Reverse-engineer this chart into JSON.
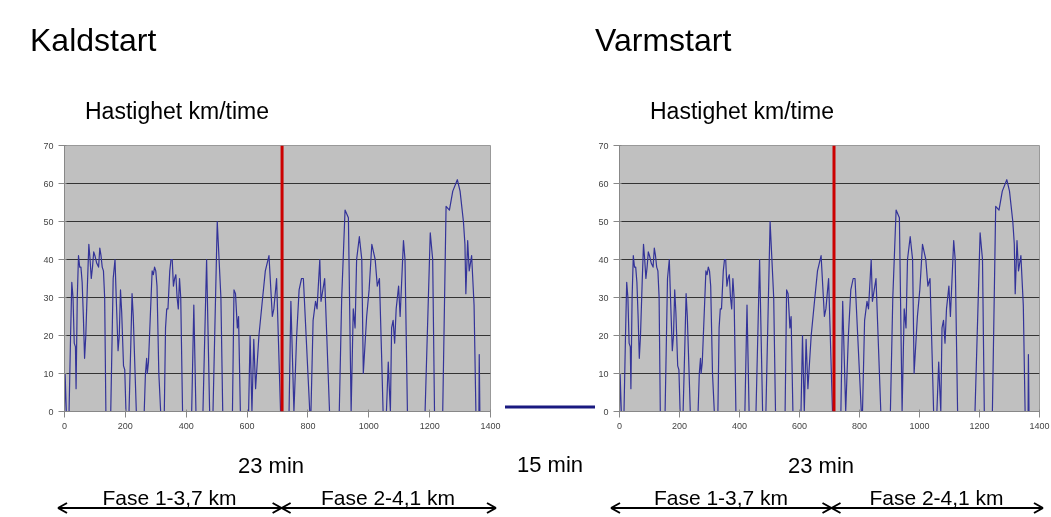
{
  "chart_data": [
    {
      "type": "line",
      "title": "Kaldstart",
      "subtitle": "Hastighet km/time",
      "annotations": [
        "23 min",
        "Fase 1-3,7 km",
        "Fase 2-4,1 km",
        "15 min"
      ],
      "x": [
        0,
        2,
        6,
        15,
        20,
        24,
        28,
        32,
        36,
        38,
        42,
        46,
        50,
        54,
        58,
        62,
        66,
        70,
        76,
        80,
        84,
        88,
        92,
        96,
        100,
        106,
        112,
        116,
        120,
        124,
        128,
        132,
        136,
        152,
        160,
        166,
        170,
        176,
        180,
        184,
        188,
        194,
        198,
        202,
        212,
        218,
        222,
        226,
        232,
        236,
        262,
        266,
        270,
        272,
        276,
        282,
        288,
        292,
        296,
        300,
        304,
        310,
        316,
        328,
        332,
        336,
        340,
        346,
        350,
        354,
        358,
        362,
        366,
        370,
        374,
        378,
        382,
        388,
        418,
        425,
        432,
        455,
        467,
        477,
        488,
        502,
        514,
        520,
        552,
        557,
        562,
        568,
        572,
        578,
        605,
        610,
        616,
        622,
        628,
        639,
        650,
        660,
        672,
        683,
        688,
        697,
        710,
        738,
        744,
        754,
        763,
        771,
        779,
        785,
        806,
        810,
        817,
        825,
        830,
        839,
        843,
        855,
        871,
        903,
        911,
        922,
        933,
        942,
        949,
        955,
        960,
        969,
        977,
        982,
        993,
        1001,
        1010,
        1021,
        1028,
        1035,
        1042,
        1047,
        1058,
        1064,
        1067,
        1071,
        1075,
        1080,
        1085,
        1090,
        1098,
        1103,
        1114,
        1119,
        1127,
        1185,
        1202,
        1210,
        1216,
        1243,
        1254,
        1265,
        1276,
        1291,
        1300,
        1311,
        1316,
        1319,
        1325,
        1330,
        1338,
        1346,
        1352,
        1362,
        1363,
        1365
      ],
      "series": [
        {
          "color": "#333399",
          "values": [
            0,
            10,
            0,
            0,
            20,
            34,
            30,
            18,
            17,
            6,
            30,
            41,
            38,
            38,
            34,
            25,
            14,
            20,
            35,
            44,
            40,
            35,
            38,
            42,
            41,
            39,
            38,
            43,
            41,
            38,
            37,
            30,
            0,
            0,
            35,
            40,
            30,
            16,
            20,
            32,
            26,
            12,
            11,
            0,
            0,
            18,
            31,
            25,
            10,
            0,
            0,
            10,
            14,
            10,
            13,
            25,
            37,
            36,
            38,
            37,
            33,
            10,
            0,
            0,
            22,
            27,
            27,
            37,
            40,
            40,
            33,
            35,
            36,
            30,
            27,
            35,
            30,
            0,
            0,
            28,
            0,
            0,
            40,
            0,
            0,
            50,
            30,
            0,
            0,
            32,
            31,
            22,
            25,
            0,
            0,
            20,
            0,
            19,
            6,
            20,
            29,
            37,
            41,
            25,
            27,
            35,
            0,
            0,
            29,
            0,
            20,
            32,
            35,
            35,
            0,
            0,
            24,
            29,
            27,
            40,
            29,
            35,
            0,
            0,
            30,
            53,
            51,
            0,
            27,
            22,
            40,
            46,
            40,
            10,
            25,
            32,
            44,
            40,
            33,
            35,
            15,
            0,
            0,
            13,
            7,
            0,
            22,
            24,
            18,
            27,
            33,
            25,
            45,
            40,
            0,
            0,
            47,
            40,
            0,
            0,
            54,
            53,
            58,
            61,
            58,
            50,
            44,
            31,
            45,
            37,
            41,
            28,
            0,
            0,
            15,
            0
          ]
        }
      ],
      "ref_lines": [
        {
          "axis": "x",
          "value": 715,
          "color": "#cc0000"
        }
      ],
      "xlim": [
        0,
        1400
      ],
      "ylim": [
        0,
        70
      ],
      "xticks": [
        0,
        200,
        400,
        600,
        800,
        1000,
        1200,
        1400
      ],
      "yticks": [
        0,
        10,
        20,
        30,
        40,
        50,
        60,
        70
      ],
      "grid": "y"
    },
    {
      "type": "line",
      "title": "Varmstart",
      "subtitle": "Hastighet km/time",
      "annotations": [
        "23 min",
        "Fase 1-3,7 km",
        "Fase 2-4,1 km"
      ],
      "x": [
        0,
        2,
        6,
        15,
        20,
        24,
        28,
        32,
        36,
        38,
        42,
        46,
        50,
        54,
        58,
        62,
        66,
        70,
        76,
        80,
        84,
        88,
        92,
        96,
        100,
        106,
        112,
        116,
        120,
        124,
        128,
        132,
        136,
        152,
        160,
        166,
        170,
        176,
        180,
        184,
        188,
        194,
        198,
        202,
        212,
        218,
        222,
        226,
        232,
        236,
        262,
        266,
        270,
        272,
        276,
        282,
        288,
        292,
        296,
        300,
        304,
        310,
        316,
        328,
        332,
        336,
        340,
        346,
        350,
        354,
        358,
        362,
        366,
        370,
        374,
        378,
        382,
        388,
        418,
        425,
        432,
        455,
        467,
        477,
        488,
        502,
        514,
        520,
        552,
        557,
        562,
        568,
        572,
        578,
        605,
        610,
        616,
        622,
        628,
        639,
        650,
        660,
        672,
        683,
        688,
        697,
        710,
        738,
        744,
        754,
        763,
        771,
        779,
        785,
        806,
        810,
        817,
        825,
        830,
        839,
        843,
        855,
        871,
        903,
        911,
        922,
        933,
        942,
        949,
        955,
        960,
        969,
        977,
        982,
        993,
        1001,
        1010,
        1021,
        1028,
        1035,
        1042,
        1047,
        1058,
        1064,
        1067,
        1071,
        1075,
        1080,
        1085,
        1090,
        1098,
        1103,
        1114,
        1119,
        1127,
        1185,
        1202,
        1210,
        1216,
        1243,
        1254,
        1265,
        1276,
        1291,
        1300,
        1311,
        1316,
        1319,
        1325,
        1330,
        1338,
        1346,
        1352,
        1362,
        1363,
        1365
      ],
      "series": [
        {
          "color": "#333399",
          "values": [
            0,
            10,
            0,
            0,
            20,
            34,
            30,
            18,
            17,
            6,
            30,
            41,
            38,
            38,
            34,
            25,
            14,
            20,
            35,
            44,
            40,
            35,
            38,
            42,
            41,
            39,
            38,
            43,
            41,
            38,
            37,
            30,
            0,
            0,
            35,
            40,
            30,
            16,
            20,
            32,
            26,
            12,
            11,
            0,
            0,
            18,
            31,
            25,
            10,
            0,
            0,
            10,
            14,
            10,
            13,
            25,
            37,
            36,
            38,
            37,
            33,
            10,
            0,
            0,
            22,
            27,
            27,
            37,
            40,
            40,
            33,
            35,
            36,
            30,
            27,
            35,
            30,
            0,
            0,
            28,
            0,
            0,
            40,
            0,
            0,
            50,
            30,
            0,
            0,
            32,
            31,
            22,
            25,
            0,
            0,
            20,
            0,
            19,
            6,
            20,
            29,
            37,
            41,
            25,
            27,
            35,
            0,
            0,
            29,
            0,
            20,
            32,
            35,
            35,
            0,
            0,
            24,
            29,
            27,
            40,
            29,
            35,
            0,
            0,
            30,
            53,
            51,
            0,
            27,
            22,
            40,
            46,
            40,
            10,
            25,
            32,
            44,
            40,
            33,
            35,
            15,
            0,
            0,
            13,
            7,
            0,
            22,
            24,
            18,
            27,
            33,
            25,
            45,
            40,
            0,
            0,
            47,
            40,
            0,
            0,
            54,
            53,
            58,
            61,
            58,
            50,
            44,
            31,
            45,
            37,
            41,
            28,
            0,
            0,
            15,
            0
          ]
        }
      ],
      "ref_lines": [
        {
          "axis": "x",
          "value": 715,
          "color": "#cc0000"
        }
      ],
      "xlim": [
        0,
        1400
      ],
      "ylim": [
        0,
        70
      ],
      "xticks": [
        0,
        200,
        400,
        600,
        800,
        1000,
        1200,
        1400
      ],
      "yticks": [
        0,
        10,
        20,
        30,
        40,
        50,
        60,
        70
      ],
      "grid": "y"
    }
  ]
}
